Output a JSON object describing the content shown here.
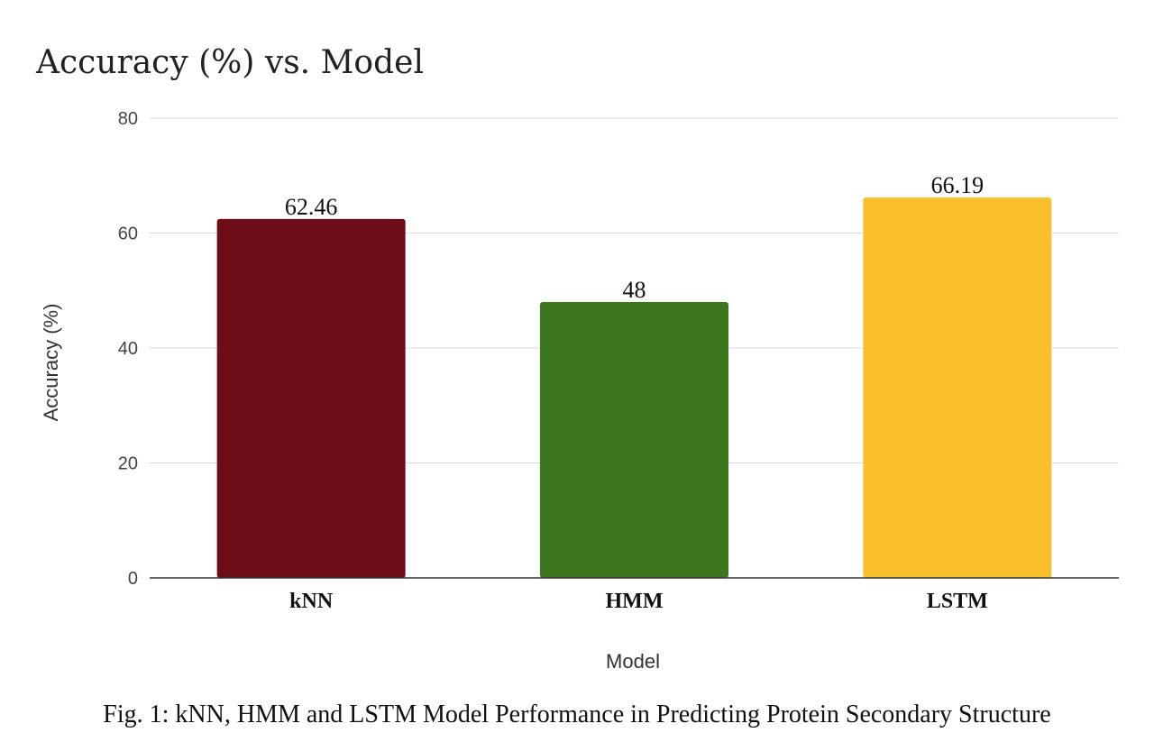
{
  "chart_data": {
    "type": "bar",
    "title": "Accuracy (%) vs. Model",
    "xlabel": "Model",
    "ylabel": "Accuracy (%)",
    "categories": [
      "kNN",
      "HMM",
      "LSTM"
    ],
    "values": [
      62.46,
      48,
      66.19
    ],
    "data_labels": [
      "62.46",
      "48",
      "66.19"
    ],
    "ylim": [
      0,
      80
    ],
    "yticks": [
      0,
      20,
      40,
      60,
      80
    ],
    "ytick_labels": [
      "0",
      "20",
      "40",
      "60",
      "80"
    ],
    "colors": [
      "#6e0d18",
      "#3b771f",
      "#f8c12c"
    ],
    "grid": true,
    "legend": "none",
    "caption": "Fig. 1: kNN, HMM and LSTM Model Performance in Predicting Protein Secondary Structure"
  }
}
